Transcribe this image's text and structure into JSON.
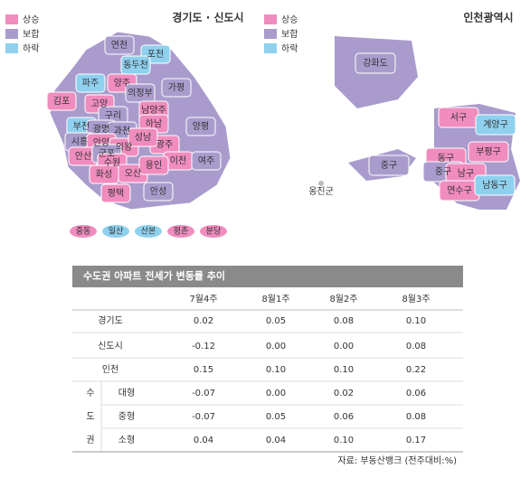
{
  "gyeonggi_map": {
    "title": "경기도 · 신도시",
    "legend": [
      {
        "label": "상승",
        "color": "#f08cbe"
      },
      {
        "label": "보합",
        "color": "#a99ccd"
      },
      {
        "label": "하락",
        "color": "#8fd0ee"
      }
    ],
    "regions": [
      {
        "label": "연천",
        "status": 1
      },
      {
        "label": "포천",
        "status": 2
      },
      {
        "label": "동두천",
        "status": 2
      },
      {
        "label": "파주",
        "status": 2
      },
      {
        "label": "양주",
        "status": 0
      },
      {
        "label": "의정부",
        "status": 1
      },
      {
        "label": "가평",
        "status": 1
      },
      {
        "label": "김포",
        "status": 0
      },
      {
        "label": "고양",
        "status": 0
      },
      {
        "label": "남양주",
        "status": 0
      },
      {
        "label": "구리",
        "status": 1
      },
      {
        "label": "하남",
        "status": 0
      },
      {
        "label": "부천",
        "status": 2
      },
      {
        "label": "광명",
        "status": 1
      },
      {
        "label": "과천",
        "status": 1
      },
      {
        "label": "양평",
        "status": 1
      },
      {
        "label": "시흥",
        "status": 1
      },
      {
        "label": "안양",
        "status": 0
      },
      {
        "label": "의왕",
        "status": 0
      },
      {
        "label": "광주",
        "status": 0
      },
      {
        "label": "안산",
        "status": 0
      },
      {
        "label": "군포",
        "status": 1
      },
      {
        "label": "수원",
        "status": 0
      },
      {
        "label": "성남",
        "status": 0
      },
      {
        "label": "이천",
        "status": 0
      },
      {
        "label": "여주",
        "status": 1
      },
      {
        "label": "화성",
        "status": 0
      },
      {
        "label": "오산",
        "status": 0
      },
      {
        "label": "용인",
        "status": 0
      },
      {
        "label": "평택",
        "status": 0
      },
      {
        "label": "안성",
        "status": 1
      }
    ],
    "new_towns": [
      {
        "label": "중동",
        "status": 0
      },
      {
        "label": "일산",
        "status": 2
      },
      {
        "label": "산본",
        "status": 2
      },
      {
        "label": "평촌",
        "status": 0
      },
      {
        "label": "분당",
        "status": 0
      }
    ]
  },
  "incheon_map": {
    "title": "인천광역시",
    "legend": [
      {
        "label": "상승",
        "color": "#f08cbe"
      },
      {
        "label": "보합",
        "color": "#a99ccd"
      },
      {
        "label": "하락",
        "color": "#8fd0ee"
      }
    ],
    "regions": [
      {
        "label": "강화도",
        "status": 1
      },
      {
        "label": "서구",
        "status": 0
      },
      {
        "label": "계양구",
        "status": 2
      },
      {
        "label": "부평구",
        "status": 0
      },
      {
        "label": "동구",
        "status": 0
      },
      {
        "label": "중구",
        "status": 1
      },
      {
        "label": "남구",
        "status": 0
      },
      {
        "label": "연수구",
        "status": 0
      },
      {
        "label": "남동구",
        "status": 2
      },
      {
        "label": "중구",
        "status": 1
      }
    ],
    "unshaded_label": "옹진군"
  },
  "table": {
    "title": "수도권 아파트 전세가 변동률 추이",
    "columns": [
      "7월4주",
      "8월1주",
      "8월2주",
      "8월3주"
    ],
    "rows": [
      {
        "label": "경기도",
        "values": [
          "0.02",
          "0.05",
          "0.08",
          "0.10"
        ]
      },
      {
        "label": "신도시",
        "values": [
          "-0.12",
          "0.00",
          "0.00",
          "0.08"
        ]
      },
      {
        "label": "인천",
        "values": [
          "0.15",
          "0.10",
          "0.10",
          "0.22"
        ]
      }
    ],
    "group": {
      "label_chars": [
        "수",
        "도",
        "권"
      ],
      "rows": [
        {
          "label": "대형",
          "values": [
            "-0.07",
            "0.00",
            "0.02",
            "0.06"
          ]
        },
        {
          "label": "중형",
          "values": [
            "-0.07",
            "0.05",
            "0.06",
            "0.08"
          ]
        },
        {
          "label": "소형",
          "values": [
            "0.04",
            "0.04",
            "0.10",
            "0.17"
          ]
        }
      ]
    },
    "source": "자료: 부동산뱅크 (전주대비:%)"
  }
}
